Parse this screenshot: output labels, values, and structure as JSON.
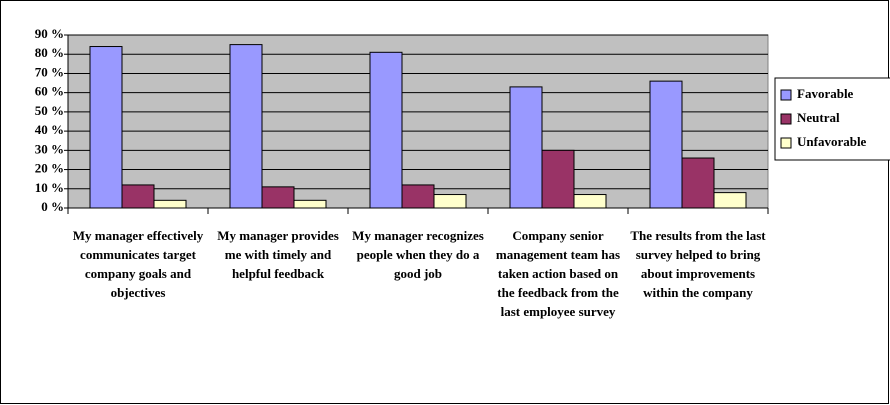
{
  "chart_data": {
    "type": "bar",
    "categories": [
      "My manager effectively communicates target company goals and objectives",
      "My manager provides me with timely and helpful feedback",
      "My manager recognizes people when they do a good job",
      "Company senior management team has taken action based on the feedback from the last employee survey",
      "The results from the last survey helped to bring about improvements within the company"
    ],
    "series": [
      {
        "name": "Favorable",
        "color": "#9999ff",
        "values": [
          84,
          85,
          81,
          63,
          66
        ]
      },
      {
        "name": "Neutral",
        "color": "#993366",
        "values": [
          12,
          11,
          12,
          30,
          26
        ]
      },
      {
        "name": "Unfavorable",
        "color": "#ffffcc",
        "values": [
          4,
          4,
          7,
          7,
          8
        ]
      }
    ],
    "ylim": [
      0,
      90
    ],
    "yticks": [
      {
        "value": 0,
        "label": "0 %"
      },
      {
        "value": 10,
        "label": "10 %"
      },
      {
        "value": 20,
        "label": "20 %"
      },
      {
        "value": 30,
        "label": "30 %"
      },
      {
        "value": 40,
        "label": "40 %"
      },
      {
        "value": 50,
        "label": "50 %"
      },
      {
        "value": 60,
        "label": "60 %"
      },
      {
        "value": 70,
        "label": "70 %"
      },
      {
        "value": 80,
        "label": "80 %"
      },
      {
        "value": 90,
        "label": "90 %"
      }
    ],
    "grid": true,
    "legend": "right",
    "background": "#c0c0c0"
  }
}
